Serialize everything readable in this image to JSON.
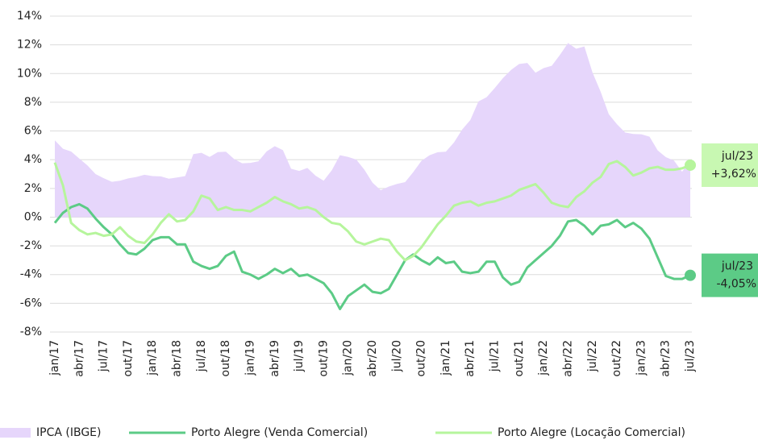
{
  "chart_data": {
    "type": "line",
    "categories": [
      "jan/17",
      null,
      null,
      "abr/17",
      null,
      null,
      "jul/17",
      null,
      null,
      "out/17",
      null,
      null,
      "jan/18",
      null,
      null,
      "abr/18",
      null,
      null,
      "jul/18",
      null,
      null,
      "out/18",
      null,
      null,
      "jan/19",
      null,
      null,
      "abr/19",
      null,
      null,
      "jul/19",
      null,
      null,
      "out/19",
      null,
      null,
      "jan/20",
      null,
      null,
      "abr/20",
      null,
      null,
      "jul/20",
      null,
      null,
      "out/20",
      null,
      null,
      "jan/21",
      null,
      null,
      "abr/21",
      null,
      null,
      "jul/21",
      null,
      null,
      "out/21",
      null,
      null,
      "jan/22",
      null,
      null,
      "abr/22",
      null,
      null,
      "jul/22",
      null,
      null,
      "out/22",
      null,
      null,
      "jan/23",
      null,
      null,
      "abr/23",
      null,
      null,
      "jul/23"
    ],
    "series": [
      {
        "name": "IPCA (IBGE)",
        "style": "area",
        "color": "#e6d6fb",
        "values": [
          5.35,
          4.76,
          4.57,
          4.08,
          3.6,
          3.0,
          2.71,
          2.46,
          2.54,
          2.7,
          2.8,
          2.95,
          2.86,
          2.84,
          2.68,
          2.76,
          2.86,
          4.39,
          4.48,
          4.19,
          4.53,
          4.56,
          4.05,
          3.75,
          3.78,
          3.89,
          4.58,
          4.94,
          4.66,
          3.37,
          3.22,
          3.43,
          2.89,
          2.54,
          3.27,
          4.31,
          4.19,
          4.01,
          3.3,
          2.4,
          1.88,
          2.13,
          2.31,
          2.44,
          3.14,
          3.92,
          4.31,
          4.52,
          4.56,
          5.2,
          6.1,
          6.76,
          8.06,
          8.35,
          8.99,
          9.68,
          10.25,
          10.67,
          10.74,
          10.06,
          10.38,
          10.54,
          11.3,
          12.13,
          11.73,
          11.89,
          10.07,
          8.73,
          7.17,
          6.47,
          5.9,
          5.79,
          5.77,
          5.6,
          4.65,
          4.18,
          3.94,
          3.16,
          3.99
        ]
      },
      {
        "name": "Porto Alegre (Venda Comercial)",
        "style": "line",
        "color": "#5ccb86",
        "box_color": "#5ccb86",
        "end_label": {
          "category": "jul/23",
          "text": "-4,05%"
        },
        "values": [
          -0.4,
          0.3,
          0.7,
          0.9,
          0.6,
          -0.1,
          -0.7,
          -1.2,
          -1.9,
          -2.5,
          -2.6,
          -2.2,
          -1.6,
          -1.4,
          -1.4,
          -1.9,
          -1.9,
          -3.1,
          -3.4,
          -3.6,
          -3.4,
          -2.7,
          -2.4,
          -3.8,
          -4.0,
          -4.3,
          -4.0,
          -3.6,
          -3.9,
          -3.6,
          -4.1,
          -4.0,
          -4.3,
          -4.6,
          -5.3,
          -6.4,
          -5.5,
          -5.1,
          -4.7,
          -5.2,
          -5.3,
          -5.0,
          -4.0,
          -3.0,
          -2.6,
          -3.0,
          -3.3,
          -2.8,
          -3.2,
          -3.1,
          -3.8,
          -3.9,
          -3.8,
          -3.1,
          -3.1,
          -4.2,
          -4.7,
          -4.5,
          -3.5,
          -3.0,
          -2.5,
          -2.0,
          -1.3,
          -0.3,
          -0.2,
          -0.6,
          -1.2,
          -0.6,
          -0.5,
          -0.2,
          -0.7,
          -0.4,
          -0.8,
          -1.5,
          -2.8,
          -4.1,
          -4.3,
          -4.3,
          -4.05
        ]
      },
      {
        "name": "Porto Alegre (Locação Comercial)",
        "style": "line",
        "color": "#b6f59c",
        "box_color": "#c8f8b2",
        "end_label": {
          "category": "jul/23",
          "text": "+3,62%"
        },
        "values": [
          3.8,
          2.2,
          -0.4,
          -0.9,
          -1.2,
          -1.1,
          -1.3,
          -1.2,
          -0.7,
          -1.3,
          -1.7,
          -1.8,
          -1.2,
          -0.4,
          0.2,
          -0.3,
          -0.2,
          0.4,
          1.5,
          1.3,
          0.5,
          0.7,
          0.5,
          0.5,
          0.4,
          0.7,
          1.0,
          1.4,
          1.1,
          0.9,
          0.6,
          0.7,
          0.5,
          0.0,
          -0.4,
          -0.5,
          -1.0,
          -1.7,
          -1.9,
          -1.7,
          -1.5,
          -1.6,
          -2.4,
          -3.0,
          -2.7,
          -2.1,
          -1.3,
          -0.5,
          0.1,
          0.8,
          1.0,
          1.1,
          0.8,
          1.0,
          1.1,
          1.3,
          1.5,
          1.9,
          2.1,
          2.3,
          1.7,
          1.0,
          0.8,
          0.7,
          1.4,
          1.8,
          2.4,
          2.8,
          3.7,
          3.9,
          3.5,
          2.9,
          3.1,
          3.4,
          3.5,
          3.3,
          3.3,
          3.4,
          3.62
        ]
      }
    ],
    "ylim": [
      -8,
      14
    ],
    "yticks": [
      {
        "value": -8,
        "label": "-8%"
      },
      {
        "value": -6,
        "label": "-6%"
      },
      {
        "value": -4,
        "label": "-4%"
      },
      {
        "value": -2,
        "label": "-2%"
      },
      {
        "value": 0,
        "label": "0%"
      },
      {
        "value": 2,
        "label": "2%"
      },
      {
        "value": 4,
        "label": "4%"
      },
      {
        "value": 6,
        "label": "6%"
      },
      {
        "value": 8,
        "label": "8%"
      },
      {
        "value": 10,
        "label": "10%"
      },
      {
        "value": 12,
        "label": "12%"
      },
      {
        "value": 14,
        "label": "14%"
      }
    ],
    "grid": true,
    "legend": "bottom"
  }
}
